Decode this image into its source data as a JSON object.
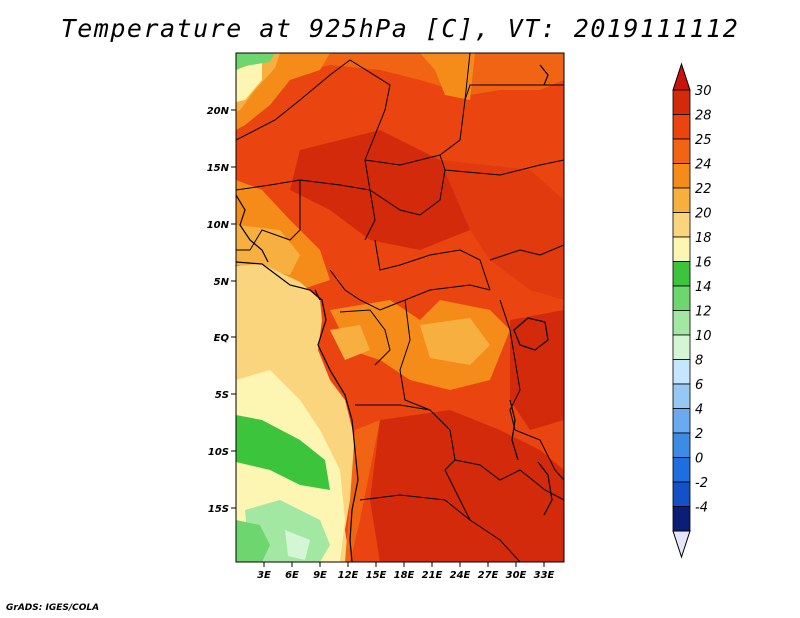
{
  "title": "Temperature at 925hPa [C], VT: 2019111112",
  "credit": "GrADS: IGES/COLA",
  "lat_labels": [
    "20N",
    "15N",
    "10N",
    "5N",
    "EQ",
    "5S",
    "10S",
    "15S"
  ],
  "lon_labels": [
    "3E",
    "6E",
    "9E",
    "12E",
    "15E",
    "18E",
    "21E",
    "24E",
    "27E",
    "30E",
    "33E"
  ],
  "colorbar": {
    "labels": [
      "30",
      "28",
      "25",
      "24",
      "22",
      "20",
      "18",
      "16",
      "14",
      "12",
      "10",
      "8",
      "6",
      "4",
      "2",
      "0",
      "-2",
      "-4"
    ],
    "colors": [
      "#d42a0c",
      "#ea4410",
      "#f06414",
      "#f58c1a",
      "#f7b040",
      "#fbd47e",
      "#fdf5b2",
      "#3cc43c",
      "#6ed66e",
      "#a2e8a2",
      "#d4f6d4",
      "#c4e6ff",
      "#96c8f4",
      "#6aaaf0",
      "#3c8ce6",
      "#1e6ee0",
      "#1450c8",
      "#0a1e78"
    ],
    "top_color": "#c8140a",
    "bottom_color": "#e6e6fa"
  }
}
